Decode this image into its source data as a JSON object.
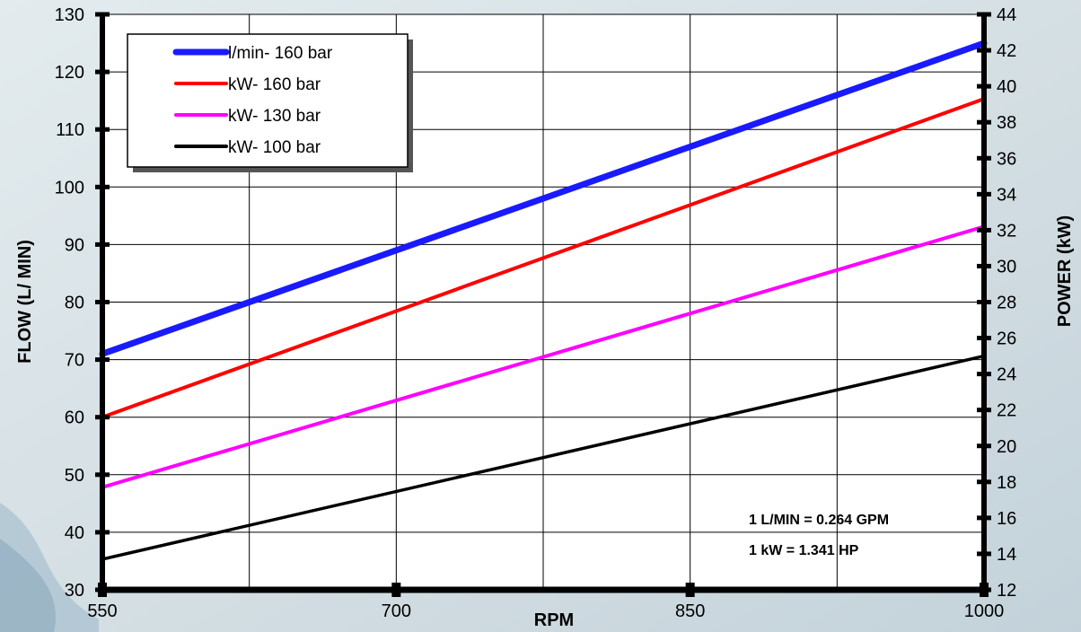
{
  "chart_data": {
    "type": "line",
    "xlabel": "RPM",
    "ylabel": "FLOW  (L/ MIN)",
    "y2label": "POWER  (kW)",
    "xlim": [
      550,
      1000
    ],
    "ylim": [
      30,
      130
    ],
    "y2lim": [
      12,
      44
    ],
    "x_ticks": [
      550,
      700,
      850,
      1000
    ],
    "x_grid": [
      550,
      625,
      700,
      775,
      850,
      925,
      1000
    ],
    "y_ticks": [
      30,
      40,
      50,
      60,
      70,
      80,
      90,
      100,
      110,
      120,
      130
    ],
    "y2_ticks": [
      12,
      14,
      16,
      18,
      20,
      22,
      24,
      26,
      28,
      30,
      32,
      34,
      36,
      38,
      40,
      42,
      44
    ],
    "grid": true,
    "legend_position": "top-left",
    "series": [
      {
        "name": "l/min- 160 bar",
        "axis": "left",
        "color": "#1a1aff",
        "x": [
          550,
          1000
        ],
        "values": [
          71,
          125
        ]
      },
      {
        "name": "kW- 160 bar",
        "axis": "right",
        "color": "#ff0000",
        "x": [
          550,
          1000
        ],
        "values": [
          21.6,
          39.3
        ]
      },
      {
        "name": "kW- 130 bar",
        "axis": "right",
        "color": "#ff00ff",
        "x": [
          550,
          1000
        ],
        "values": [
          17.7,
          32.2
        ]
      },
      {
        "name": "kW- 100 bar",
        "axis": "right",
        "color": "#000000",
        "x": [
          550,
          1000
        ],
        "values": [
          13.7,
          25.0
        ]
      }
    ],
    "annotations": [
      "1 L/MIN = 0.264 GPM",
      "1 kW = 1.341 HP"
    ]
  }
}
